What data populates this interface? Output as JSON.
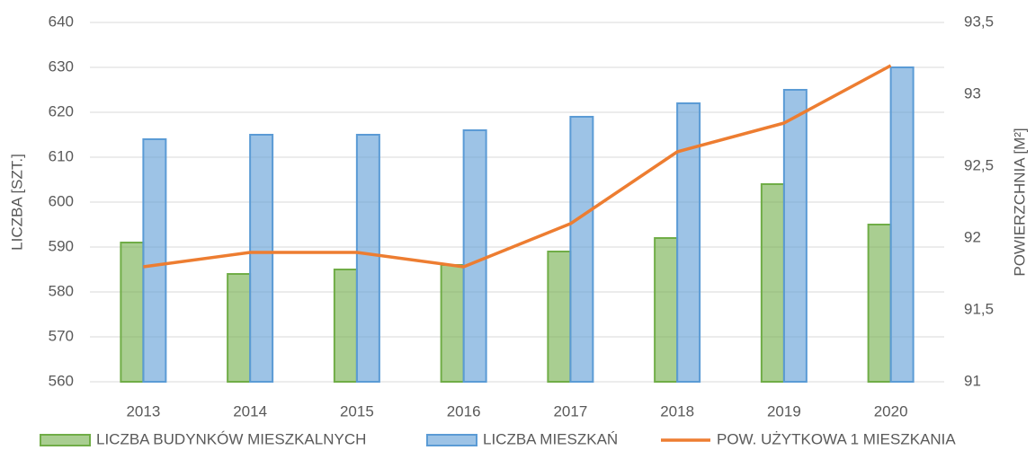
{
  "chart_data": {
    "type": "bar",
    "categories": [
      "2013",
      "2014",
      "2015",
      "2016",
      "2017",
      "2018",
      "2019",
      "2020"
    ],
    "series": [
      {
        "name": "LICZBA BUDYNKÓW MIESZKALNYCH",
        "type": "bar",
        "color": "#70ad47",
        "values": [
          591,
          584,
          585,
          586,
          589,
          592,
          604,
          595
        ]
      },
      {
        "name": "LICZBA MIESZKAŃ",
        "type": "bar",
        "color": "#5b9bd5",
        "values": [
          614,
          615,
          615,
          616,
          619,
          622,
          625,
          630
        ]
      },
      {
        "name": "POW. UŻYTKOWA 1 MIESZKANIA",
        "type": "line",
        "axis": "y2",
        "color": "#ed7d31",
        "values": [
          91.8,
          91.9,
          91.9,
          91.8,
          92.1,
          92.6,
          92.8,
          93.2
        ]
      }
    ],
    "ylabel": "LICZBA [SZT.]",
    "y2label": "POWIERZCHNIA [M²]",
    "ylim": [
      560,
      640
    ],
    "yticks": [
      560,
      570,
      580,
      590,
      600,
      610,
      620,
      630,
      640
    ],
    "y2lim": [
      91,
      93.5
    ],
    "y2ticks": [
      91,
      {
        "value": 91.5,
        "label": "91,5"
      },
      92,
      {
        "value": 92.5,
        "label": "92,5"
      },
      93,
      {
        "value": 93.5,
        "label": "93,5"
      }
    ],
    "grid": true,
    "legend": "bottom"
  }
}
